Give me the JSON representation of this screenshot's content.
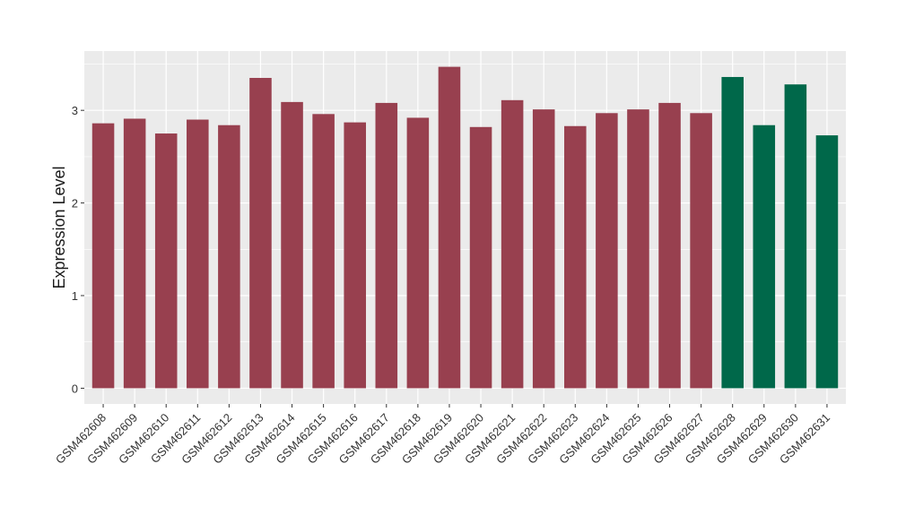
{
  "chart_data": {
    "type": "bar",
    "ylabel": "Expression Level",
    "ylim": [
      -0.17,
      3.64
    ],
    "yticks": [
      0,
      1,
      2,
      3
    ],
    "grid": true,
    "colors": {
      "panel": "#EBEBEB",
      "grid": "#FFFFFF",
      "default_bar": "#98404F",
      "highlight_bar": "#00684A",
      "axis_text": "#1A1A1A",
      "tick": "#333333"
    },
    "categories": [
      "GSM462608",
      "GSM462609",
      "GSM462610",
      "GSM462611",
      "GSM462612",
      "GSM462613",
      "GSM462614",
      "GSM462615",
      "GSM462616",
      "GSM462617",
      "GSM462618",
      "GSM462619",
      "GSM462620",
      "GSM462621",
      "GSM462622",
      "GSM462623",
      "GSM462624",
      "GSM462625",
      "GSM462626",
      "GSM462627",
      "GSM462628",
      "GSM462629",
      "GSM462630",
      "GSM462631"
    ],
    "values": [
      2.86,
      2.91,
      2.75,
      2.9,
      2.84,
      3.35,
      3.09,
      2.96,
      2.87,
      3.08,
      2.92,
      3.47,
      2.82,
      3.11,
      3.01,
      2.83,
      2.97,
      3.01,
      3.08,
      2.97,
      3.36,
      2.84,
      3.28,
      2.73
    ],
    "bar_colors": [
      "#98404F",
      "#98404F",
      "#98404F",
      "#98404F",
      "#98404F",
      "#98404F",
      "#98404F",
      "#98404F",
      "#98404F",
      "#98404F",
      "#98404F",
      "#98404F",
      "#98404F",
      "#98404F",
      "#98404F",
      "#98404F",
      "#98404F",
      "#98404F",
      "#98404F",
      "#98404F",
      "#00684A",
      "#00684A",
      "#00684A",
      "#00684A"
    ]
  }
}
